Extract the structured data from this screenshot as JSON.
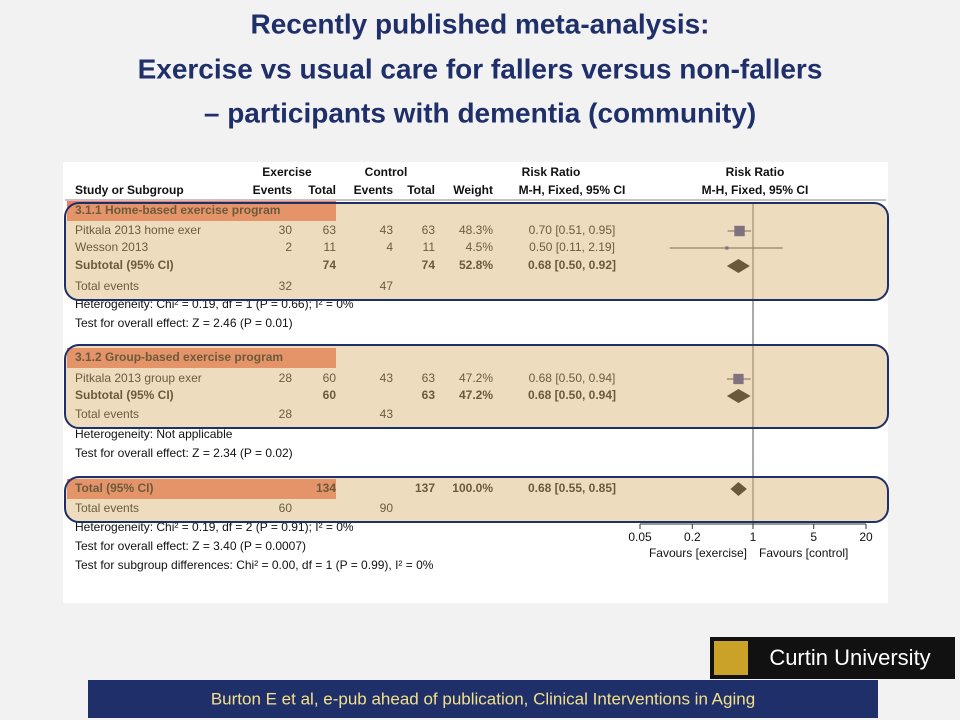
{
  "title": [
    "Recently published meta-analysis:",
    "Exercise vs usual care for fallers versus non-fallers",
    "– participants with dementia (community)"
  ],
  "forest": {
    "group_headers": [
      "Exercise",
      "Control",
      "Risk Ratio",
      "Risk Ratio"
    ],
    "columns": [
      "Study or Subgroup",
      "Events",
      "Total",
      "Events",
      "Total",
      "Weight",
      "M-H, Fixed, 95% CI",
      "M-H, Fixed, 95% CI"
    ],
    "rows": [
      {
        "style": "group",
        "cells": [
          "3.1.1 Home-based exercise program"
        ]
      },
      {
        "style": "study",
        "cells": [
          "Pitkala 2013 home exer",
          "30",
          "63",
          "43",
          "63",
          "48.3%",
          "0.70 [0.51, 0.95]"
        ],
        "marker": "square",
        "estimate": 0.7,
        "lower": 0.51,
        "upper": 0.95
      },
      {
        "style": "study",
        "cells": [
          "Wesson 2013",
          "2",
          "11",
          "4",
          "11",
          "4.5%",
          "0.50 [0.11, 2.19]"
        ],
        "marker": "square",
        "estimate": 0.5,
        "lower": 0.11,
        "upper": 2.19
      },
      {
        "style": "subtotal",
        "cells": [
          "Subtotal (95% CI)",
          "",
          "74",
          "",
          "74",
          "52.8%",
          "0.68 [0.50, 0.92]"
        ],
        "marker": "diamond",
        "estimate": 0.68,
        "lower": 0.5,
        "upper": 0.92
      },
      {
        "style": "plain",
        "cells": [
          "Total events",
          "32",
          "",
          "47"
        ]
      },
      {
        "style": "plain",
        "cells": [
          "Heterogeneity: Chi² = 0.19, df = 1 (P = 0.66); I² = 0%"
        ]
      },
      {
        "style": "plain",
        "cells": [
          "Test for overall effect: Z = 2.46 (P = 0.01)"
        ]
      },
      {
        "style": "group",
        "cells": [
          "3.1.2 Group-based exercise program"
        ]
      },
      {
        "style": "study",
        "cells": [
          "Pitkala 2013 group exer",
          "28",
          "60",
          "43",
          "63",
          "47.2%",
          "0.68 [0.50, 0.94]"
        ],
        "marker": "square",
        "estimate": 0.68,
        "lower": 0.5,
        "upper": 0.94
      },
      {
        "style": "subtotal",
        "cells": [
          "Subtotal (95% CI)",
          "",
          "60",
          "",
          "63",
          "47.2%",
          "0.68 [0.50, 0.94]"
        ],
        "marker": "diamond",
        "estimate": 0.68,
        "lower": 0.5,
        "upper": 0.94
      },
      {
        "style": "plain",
        "cells": [
          "Total events",
          "28",
          "",
          "43"
        ]
      },
      {
        "style": "plain",
        "cells": [
          "Heterogeneity: Not applicable"
        ]
      },
      {
        "style": "plain",
        "cells": [
          "Test for overall effect: Z = 2.34 (P = 0.02)"
        ]
      },
      {
        "style": "grandtotal",
        "cells": [
          "Total (95% CI)",
          "",
          "134",
          "",
          "137",
          "100.0%",
          "0.68 [0.55, 0.85]"
        ],
        "marker": "diamond",
        "estimate": 0.68,
        "lower": 0.55,
        "upper": 0.85
      },
      {
        "style": "plain",
        "cells": [
          "Total events",
          "60",
          "",
          "90"
        ]
      },
      {
        "style": "plain",
        "cells": [
          "Heterogeneity: Chi² = 0.19, df = 2 (P = 0.91); I² = 0%"
        ]
      },
      {
        "style": "plain",
        "cells": [
          "Test for overall effect: Z = 3.40 (P = 0.0007)"
        ]
      },
      {
        "style": "plain",
        "cells": [
          "Test for subgroup differences: Chi² = 0.00, df = 1 (P = 0.99), I² = 0%"
        ]
      }
    ],
    "xscale": "log",
    "xlim": [
      0.05,
      20
    ],
    "xticks": [
      0.05,
      0.2,
      1,
      5,
      20
    ],
    "favours": [
      "Favours [exercise]",
      "Favours [control]"
    ]
  },
  "logo": "Curtin University",
  "footer": "Burton E et al, e-pub ahead of publication, Clinical Interventions in Aging"
}
